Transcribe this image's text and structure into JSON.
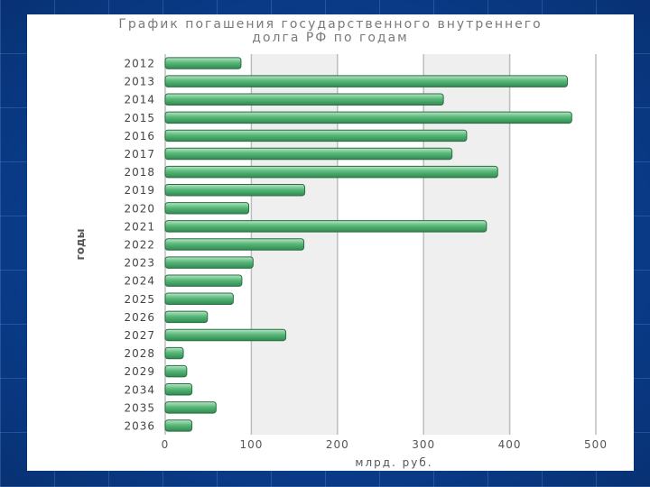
{
  "chart_data": {
    "type": "bar",
    "orientation": "horizontal",
    "title_line1": "График погашения государственного внутреннего",
    "title_line2": "долга РФ по годам",
    "xlabel": "млрд. руб.",
    "ylabel": "годы",
    "xlim": [
      0,
      500
    ],
    "xticks": [
      0,
      100,
      200,
      300,
      400,
      500
    ],
    "grid": true,
    "categories": [
      "2012",
      "2013",
      "2014",
      "2015",
      "2016",
      "2017",
      "2018",
      "2019",
      "2020",
      "2021",
      "2022",
      "2023",
      "2024",
      "2025",
      "2026",
      "2027",
      "2028",
      "2029",
      "2034",
      "2035",
      "2036"
    ],
    "values": [
      88,
      467,
      323,
      472,
      350,
      333,
      386,
      162,
      97,
      373,
      161,
      102,
      89,
      79,
      49,
      140,
      21,
      25,
      31,
      59,
      31
    ]
  },
  "colors": {
    "bar_light": "#b8e6c6",
    "bar_mid": "#5ab87a",
    "bar_dark": "#2f8a50",
    "band": "#efefef",
    "gridline": "#bdbdbd"
  }
}
